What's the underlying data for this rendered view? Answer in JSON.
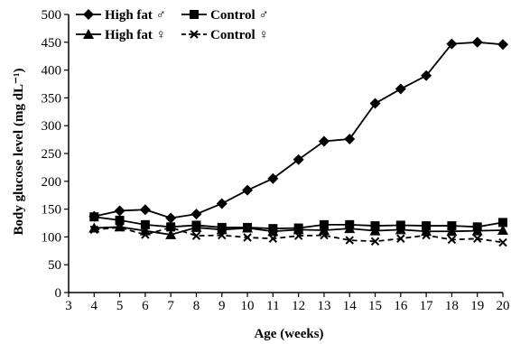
{
  "chart_data": {
    "type": "line",
    "title": "",
    "xlabel": "Age (weeks)",
    "ylabel": "Body glucose level (mg dL⁻¹)",
    "xlim": [
      3,
      20
    ],
    "ylim": [
      0,
      500
    ],
    "xticks": [
      3,
      4,
      5,
      6,
      7,
      8,
      9,
      10,
      11,
      12,
      13,
      14,
      15,
      16,
      17,
      18,
      19,
      20
    ],
    "yticks": [
      0,
      50,
      100,
      150,
      200,
      250,
      300,
      350,
      400,
      450,
      500
    ],
    "grid": false,
    "legend_position": "top-left",
    "x": [
      4,
      5,
      6,
      7,
      8,
      9,
      10,
      11,
      12,
      13,
      14,
      15,
      16,
      17,
      18,
      19,
      20
    ],
    "series": [
      {
        "name": "High fat ♂",
        "marker": "diamond",
        "dash": "solid",
        "values": [
          137,
          147,
          149,
          134,
          141,
          160,
          184,
          205,
          239,
          272,
          276,
          340,
          366,
          390,
          447,
          450,
          446
        ]
      },
      {
        "name": "Control ♂",
        "marker": "square",
        "dash": "solid",
        "values": [
          136,
          130,
          122,
          118,
          121,
          117,
          117,
          115,
          116,
          122,
          122,
          120,
          121,
          120,
          120,
          118,
          126
        ]
      },
      {
        "name": "High fat ♀",
        "marker": "triangle",
        "dash": "solid",
        "values": [
          116,
          118,
          111,
          104,
          117,
          113,
          116,
          110,
          113,
          112,
          115,
          111,
          113,
          110,
          110,
          111,
          112
        ]
      },
      {
        "name": "Control ♀",
        "marker": "x",
        "dash": "dashed",
        "values": [
          113,
          117,
          104,
          117,
          102,
          103,
          99,
          97,
          102,
          103,
          94,
          92,
          97,
          103,
          95,
          97,
          90
        ]
      }
    ]
  }
}
